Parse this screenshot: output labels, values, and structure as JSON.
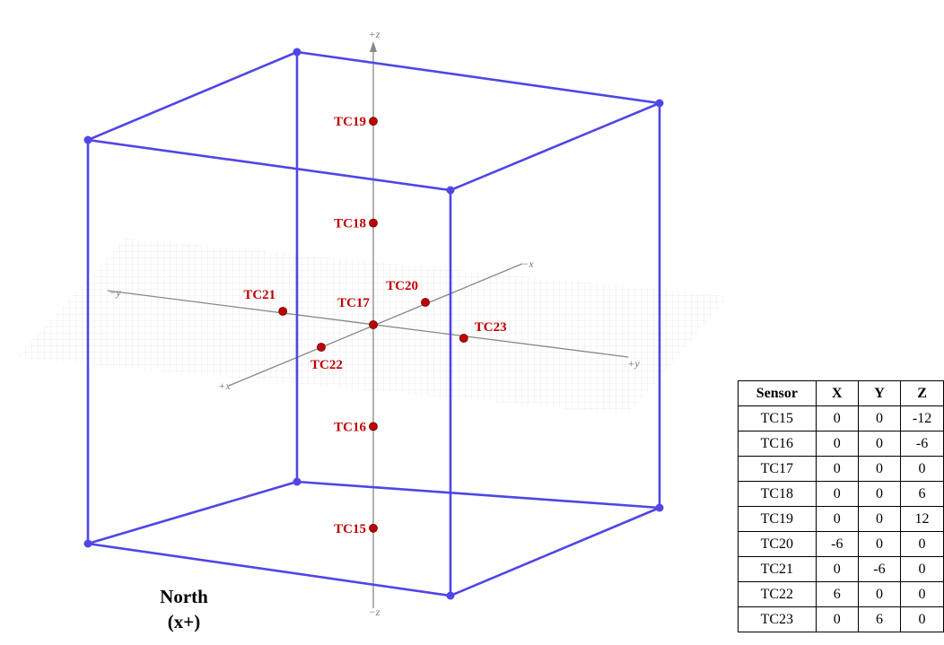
{
  "axes": {
    "plus_z": "+z",
    "minus_z": "−z",
    "minus_y": "−y",
    "plus_y": "+y",
    "minus_x": "−x",
    "plus_x": "+x"
  },
  "caption": {
    "line1": "North",
    "line2": "(x+)"
  },
  "table": {
    "header": [
      "Sensor",
      "X",
      "Y",
      "Z"
    ],
    "rows": [
      [
        "TC15",
        0,
        0,
        -12
      ],
      [
        "TC16",
        0,
        0,
        -6
      ],
      [
        "TC17",
        0,
        0,
        0
      ],
      [
        "TC18",
        0,
        0,
        6
      ],
      [
        "TC19",
        0,
        0,
        12
      ],
      [
        "TC20",
        -6,
        0,
        0
      ],
      [
        "TC21",
        0,
        -6,
        0
      ],
      [
        "TC22",
        6,
        0,
        0
      ],
      [
        "TC23",
        0,
        6,
        0
      ]
    ]
  }
}
